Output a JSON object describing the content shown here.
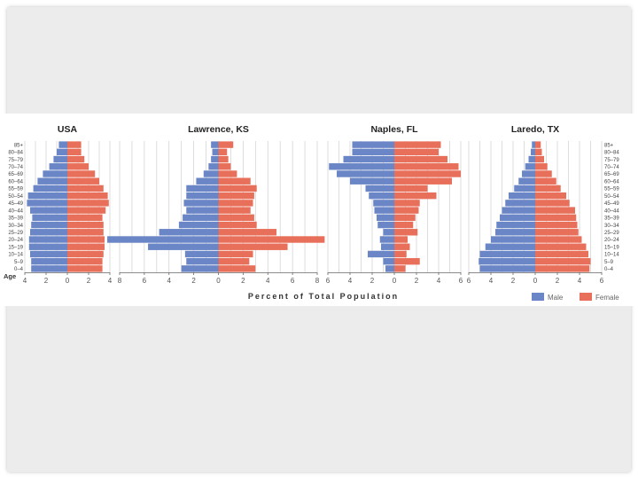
{
  "colors": {
    "male": "#6b86c6",
    "female": "#e8705a",
    "grid": "#cfcfcf",
    "axis": "#666666",
    "slide_bg": "#ececec"
  },
  "chart_data": {
    "type": "bar",
    "subtype": "population-pyramid",
    "xlabel": "Percent of Total Population",
    "ylabel": "Age",
    "age_groups": [
      "0–4",
      "5–9",
      "10–14",
      "15–19",
      "20–24",
      "25–29",
      "30–34",
      "35–39",
      "40–44",
      "45–49",
      "50–54",
      "55–59",
      "60–64",
      "65–69",
      "70–74",
      "75–79",
      "80–84",
      "85+"
    ],
    "legend": [
      {
        "name": "Male"
      },
      {
        "name": "Female"
      }
    ],
    "panels": [
      {
        "title": "USA",
        "xlim": 4,
        "ticks": [
          "4",
          "2",
          "0",
          "2",
          "4"
        ],
        "show_age_labels": "left",
        "male": [
          3.4,
          3.4,
          3.5,
          3.6,
          3.6,
          3.5,
          3.4,
          3.3,
          3.5,
          3.8,
          3.7,
          3.2,
          2.8,
          2.3,
          1.7,
          1.3,
          1.0,
          0.8
        ],
        "female": [
          3.3,
          3.3,
          3.4,
          3.5,
          3.5,
          3.4,
          3.4,
          3.3,
          3.6,
          3.9,
          3.8,
          3.4,
          3.0,
          2.6,
          2.0,
          1.6,
          1.3,
          1.3
        ]
      },
      {
        "title": "Lawrence, KS",
        "xlim": 8,
        "ticks": [
          "8",
          "6",
          "4",
          "2",
          "0",
          "2",
          "4",
          "6",
          "8"
        ],
        "show_age_labels": "none",
        "male": [
          3.0,
          2.6,
          2.7,
          5.7,
          9.0,
          4.8,
          3.2,
          2.9,
          2.6,
          2.8,
          2.6,
          2.6,
          1.8,
          1.2,
          0.8,
          0.6,
          0.5,
          0.6
        ],
        "female": [
          3.0,
          2.5,
          2.8,
          5.6,
          8.6,
          4.7,
          3.1,
          2.9,
          2.6,
          2.8,
          2.9,
          3.1,
          2.6,
          1.5,
          1.0,
          0.8,
          0.7,
          1.2
        ]
      },
      {
        "title": "Naples, FL",
        "xlim": 6,
        "ticks": [
          "6",
          "4",
          "2",
          "0",
          "2",
          "4",
          "6"
        ],
        "show_age_labels": "none",
        "male": [
          0.8,
          1.0,
          2.4,
          1.2,
          1.3,
          1.0,
          1.5,
          1.6,
          1.8,
          1.9,
          2.3,
          2.6,
          4.0,
          5.2,
          5.9,
          4.6,
          3.8,
          3.8
        ],
        "female": [
          1.0,
          2.3,
          1.1,
          1.4,
          1.2,
          2.1,
          1.7,
          1.9,
          2.2,
          2.3,
          3.8,
          3.0,
          5.2,
          6.0,
          5.8,
          4.8,
          4.0,
          4.2
        ]
      },
      {
        "title": "Laredo, TX",
        "xlim": 6,
        "ticks": [
          "6",
          "4",
          "2",
          "0",
          "2",
          "4",
          "6"
        ],
        "show_age_labels": "right",
        "male": [
          5.0,
          5.1,
          5.0,
          4.5,
          4.0,
          3.6,
          3.5,
          3.2,
          3.0,
          2.7,
          2.4,
          1.9,
          1.5,
          1.2,
          0.9,
          0.6,
          0.4,
          0.3
        ],
        "female": [
          4.9,
          5.0,
          4.8,
          4.6,
          4.2,
          3.9,
          3.8,
          3.7,
          3.6,
          3.1,
          2.8,
          2.3,
          1.9,
          1.5,
          1.1,
          0.8,
          0.6,
          0.5
        ]
      }
    ]
  }
}
